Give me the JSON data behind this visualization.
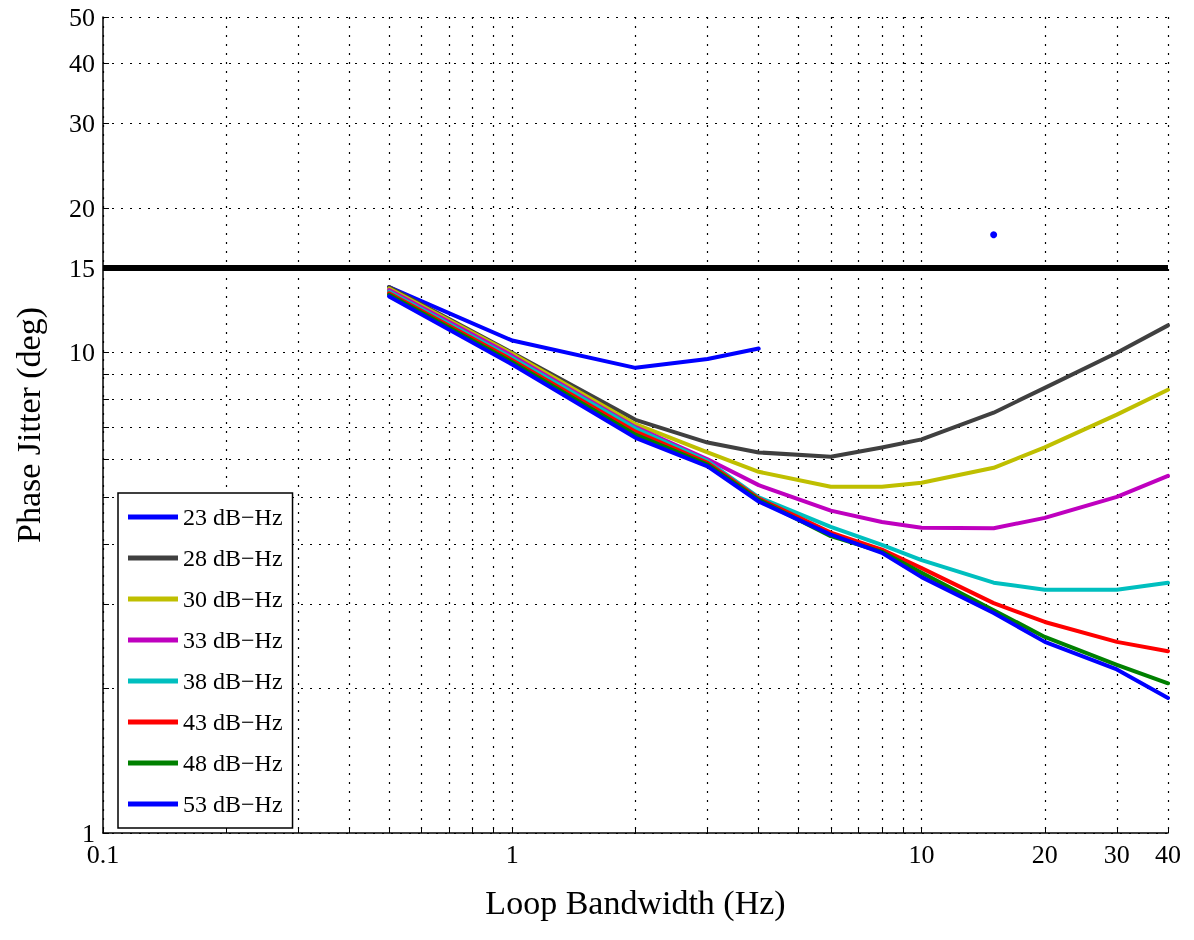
{
  "chart_data": {
    "type": "line",
    "xlabel": "Loop Bandwidth (Hz)",
    "ylabel": "Phase Jitter (deg)",
    "x": [
      0.5,
      1,
      2,
      3,
      4,
      6,
      8,
      10,
      15,
      20,
      30,
      40
    ],
    "series": [
      {
        "name": "23 dB−Hz",
        "color": "#0000ff",
        "values": [
          13.7,
          10.6,
          9.3,
          9.7,
          10.2,
          null,
          null,
          null,
          null,
          null,
          null,
          null
        ]
      },
      {
        "name": "28 dB−Hz",
        "color": "#404040",
        "values": [
          13.7,
          10.0,
          7.25,
          6.5,
          6.2,
          6.07,
          6.35,
          6.6,
          7.5,
          8.45,
          10.0,
          11.4
        ]
      },
      {
        "name": "30 dB−Hz",
        "color": "#bfbf00",
        "values": [
          13.6,
          9.95,
          7.1,
          6.2,
          5.65,
          5.26,
          5.26,
          5.36,
          5.76,
          6.35,
          7.43,
          8.37
        ]
      },
      {
        "name": "33 dB−Hz",
        "color": "#bf00bf",
        "values": [
          13.5,
          9.85,
          7.0,
          6.0,
          5.3,
          4.69,
          4.44,
          4.32,
          4.31,
          4.53,
          5.01,
          5.54
        ]
      },
      {
        "name": "38 dB−Hz",
        "color": "#00bfbf",
        "values": [
          13.4,
          9.75,
          6.95,
          5.95,
          5.0,
          4.34,
          3.98,
          3.7,
          3.32,
          3.21,
          3.21,
          3.32
        ]
      },
      {
        "name": "43 dB−Hz",
        "color": "#ff0000",
        "values": [
          13.3,
          9.65,
          6.85,
          5.9,
          4.97,
          4.22,
          3.89,
          3.56,
          3.01,
          2.75,
          2.5,
          2.39
        ]
      },
      {
        "name": "48 dB−Hz",
        "color": "#008000",
        "values": [
          13.2,
          9.55,
          6.75,
          5.85,
          4.94,
          4.15,
          3.85,
          3.48,
          2.91,
          2.56,
          2.24,
          2.05
        ]
      },
      {
        "name": "53 dB−Hz",
        "color": "#0000ff",
        "values": [
          13.1,
          9.45,
          6.65,
          5.8,
          4.9,
          4.18,
          3.83,
          3.41,
          2.87,
          2.5,
          2.19,
          1.91
        ]
      },
      {
        "type": "scatter",
        "color": "#0000ff",
        "x": [
          15
        ],
        "values": [
          17.6
        ]
      }
    ],
    "xlim": [
      0.1,
      40
    ],
    "ylim": [
      1,
      50
    ],
    "xticks": [
      0.1,
      {
        "value": 0.2,
        "label": null
      },
      {
        "value": 0.3,
        "label": null
      },
      {
        "value": 0.4,
        "label": null
      },
      {
        "value": 0.5,
        "label": null
      },
      {
        "value": 0.6,
        "label": null
      },
      {
        "value": 0.7,
        "label": null
      },
      {
        "value": 0.8,
        "label": null
      },
      {
        "value": 0.9,
        "label": null
      },
      1,
      {
        "value": 2,
        "label": null
      },
      {
        "value": 3,
        "label": null
      },
      {
        "value": 4,
        "label": null
      },
      {
        "value": 5,
        "label": null
      },
      {
        "value": 6,
        "label": null
      },
      {
        "value": 7,
        "label": null
      },
      {
        "value": 8,
        "label": null
      },
      {
        "value": 9,
        "label": null
      },
      10,
      20,
      30,
      40
    ],
    "yticks": [
      1,
      {
        "value": 2,
        "label": null
      },
      {
        "value": 3,
        "label": null
      },
      {
        "value": 4,
        "label": null
      },
      {
        "value": 5,
        "label": null
      },
      {
        "value": 6,
        "label": null
      },
      {
        "value": 7,
        "label": null
      },
      {
        "value": 8,
        "label": null
      },
      {
        "value": 9,
        "label": null
      },
      10,
      15,
      20,
      30,
      40,
      50
    ],
    "ref_lines": [
      {
        "axis": "y",
        "value": 15,
        "color": "#000000"
      }
    ],
    "log": "xy",
    "grid": true,
    "legend": "bottom left",
    "marker": "none",
    "line_style": "solid"
  }
}
